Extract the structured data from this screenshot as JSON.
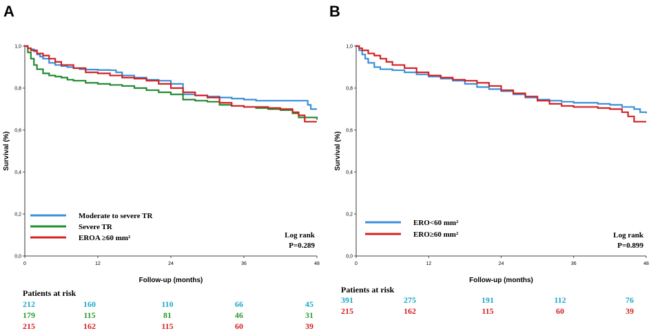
{
  "chart_data": [
    {
      "panel": "A",
      "type": "line",
      "xlabel": "Follow-up (months)",
      "ylabel": "Survival (%)",
      "xlim": [
        0,
        48
      ],
      "ylim": [
        0,
        1
      ],
      "xticks": [
        "0",
        "12",
        "24",
        "36",
        "48"
      ],
      "yticks": [
        "0,0",
        "0,2",
        "0,4",
        "0,6",
        "0,8",
        "1,0"
      ],
      "annotation": [
        "Log rank",
        "P=0.289"
      ],
      "series": [
        {
          "name": "Moderate to severe TR",
          "color": "#3a8fd8",
          "points": [
            [
              0,
              1.0
            ],
            [
              0.5,
              0.99
            ],
            [
              1,
              0.985
            ],
            [
              1.5,
              0.975
            ],
            [
              2,
              0.96
            ],
            [
              2.5,
              0.95
            ],
            [
              3,
              0.94
            ],
            [
              4,
              0.92
            ],
            [
              5,
              0.91
            ],
            [
              6,
              0.905
            ],
            [
              7,
              0.9
            ],
            [
              8,
              0.895
            ],
            [
              9,
              0.89
            ],
            [
              10,
              0.888
            ],
            [
              12,
              0.886
            ],
            [
              14,
              0.885
            ],
            [
              15,
              0.875
            ],
            [
              16,
              0.86
            ],
            [
              18,
              0.85
            ],
            [
              20,
              0.84
            ],
            [
              22,
              0.835
            ],
            [
              24,
              0.82
            ],
            [
              26,
              0.77
            ],
            [
              28,
              0.765
            ],
            [
              30,
              0.76
            ],
            [
              32,
              0.755
            ],
            [
              34,
              0.75
            ],
            [
              36,
              0.745
            ],
            [
              38,
              0.74
            ],
            [
              40,
              0.74
            ],
            [
              42,
              0.74
            ],
            [
              45,
              0.74
            ],
            [
              46,
              0.74
            ],
            [
              46.5,
              0.72
            ],
            [
              47,
              0.7
            ],
            [
              48,
              0.7
            ]
          ]
        },
        {
          "name": "Severe TR",
          "color": "#1e8b2e",
          "points": [
            [
              0,
              1.0
            ],
            [
              0.5,
              0.97
            ],
            [
              1,
              0.94
            ],
            [
              1.5,
              0.91
            ],
            [
              2,
              0.89
            ],
            [
              3,
              0.87
            ],
            [
              4,
              0.86
            ],
            [
              5,
              0.855
            ],
            [
              6,
              0.85
            ],
            [
              7,
              0.84
            ],
            [
              8,
              0.835
            ],
            [
              10,
              0.825
            ],
            [
              12,
              0.82
            ],
            [
              14,
              0.815
            ],
            [
              16,
              0.81
            ],
            [
              18,
              0.8
            ],
            [
              20,
              0.79
            ],
            [
              22,
              0.78
            ],
            [
              24,
              0.77
            ],
            [
              26,
              0.745
            ],
            [
              28,
              0.74
            ],
            [
              30,
              0.735
            ],
            [
              32,
              0.72
            ],
            [
              34,
              0.715
            ],
            [
              36,
              0.71
            ],
            [
              38,
              0.705
            ],
            [
              40,
              0.7
            ],
            [
              42,
              0.695
            ],
            [
              44,
              0.68
            ],
            [
              45,
              0.66
            ],
            [
              48,
              0.65
            ]
          ]
        },
        {
          "name": "EROA ≥60 mm²",
          "color": "#d42020",
          "points": [
            [
              0,
              1.0
            ],
            [
              0.5,
              0.99
            ],
            [
              1,
              0.98
            ],
            [
              2,
              0.965
            ],
            [
              3,
              0.955
            ],
            [
              4,
              0.94
            ],
            [
              5,
              0.925
            ],
            [
              6,
              0.91
            ],
            [
              8,
              0.895
            ],
            [
              10,
              0.875
            ],
            [
              12,
              0.87
            ],
            [
              14,
              0.86
            ],
            [
              16,
              0.85
            ],
            [
              18,
              0.845
            ],
            [
              20,
              0.835
            ],
            [
              22,
              0.82
            ],
            [
              24,
              0.8
            ],
            [
              26,
              0.78
            ],
            [
              28,
              0.765
            ],
            [
              30,
              0.755
            ],
            [
              32,
              0.73
            ],
            [
              34,
              0.715
            ],
            [
              36,
              0.71
            ],
            [
              38,
              0.71
            ],
            [
              40,
              0.705
            ],
            [
              42,
              0.7
            ],
            [
              44,
              0.685
            ],
            [
              45,
              0.67
            ],
            [
              46,
              0.64
            ],
            [
              48,
              0.64
            ]
          ]
        }
      ],
      "risk_table": {
        "title": "Patients at risk",
        "rows": [
          {
            "color": "#1aa8c8",
            "values": [
              "212",
              "160",
              "110",
              "66",
              "45"
            ]
          },
          {
            "color": "#2a9a2a",
            "values": [
              "179",
              "115",
              "81",
              "46",
              "31"
            ]
          },
          {
            "color": "#d42020",
            "values": [
              "215",
              "162",
              "115",
              "60",
              "39"
            ]
          }
        ]
      }
    },
    {
      "panel": "B",
      "type": "line",
      "xlabel": "Follow-up (months)",
      "ylabel": "Survival (%)",
      "xlim": [
        0,
        48
      ],
      "ylim": [
        0,
        1
      ],
      "xticks": [
        "0",
        "12",
        "24",
        "36",
        "48"
      ],
      "yticks": [
        "0,0",
        "0,2",
        "0,4",
        "0,6",
        "0,8",
        "1,0"
      ],
      "annotation": [
        "Log rank",
        "P=0.899"
      ],
      "series": [
        {
          "name": "ERO<60 mm²",
          "color": "#3a8fd8",
          "points": [
            [
              0,
              1.0
            ],
            [
              0.5,
              0.98
            ],
            [
              1,
              0.96
            ],
            [
              1.5,
              0.94
            ],
            [
              2,
              0.92
            ],
            [
              3,
              0.9
            ],
            [
              4,
              0.89
            ],
            [
              6,
              0.885
            ],
            [
              8,
              0.875
            ],
            [
              10,
              0.865
            ],
            [
              12,
              0.855
            ],
            [
              14,
              0.845
            ],
            [
              16,
              0.835
            ],
            [
              18,
              0.82
            ],
            [
              20,
              0.805
            ],
            [
              22,
              0.795
            ],
            [
              24,
              0.785
            ],
            [
              26,
              0.77
            ],
            [
              28,
              0.755
            ],
            [
              30,
              0.745
            ],
            [
              32,
              0.74
            ],
            [
              34,
              0.735
            ],
            [
              36,
              0.73
            ],
            [
              38,
              0.73
            ],
            [
              40,
              0.725
            ],
            [
              42,
              0.72
            ],
            [
              44,
              0.71
            ],
            [
              46,
              0.7
            ],
            [
              47,
              0.685
            ],
            [
              48,
              0.68
            ]
          ]
        },
        {
          "name": "ERO≥60 mm²",
          "color": "#d42020",
          "points": [
            [
              0,
              1.0
            ],
            [
              0.5,
              0.99
            ],
            [
              1,
              0.98
            ],
            [
              2,
              0.965
            ],
            [
              3,
              0.955
            ],
            [
              4,
              0.94
            ],
            [
              5,
              0.925
            ],
            [
              6,
              0.91
            ],
            [
              8,
              0.895
            ],
            [
              10,
              0.875
            ],
            [
              12,
              0.86
            ],
            [
              14,
              0.85
            ],
            [
              16,
              0.84
            ],
            [
              18,
              0.835
            ],
            [
              20,
              0.825
            ],
            [
              22,
              0.81
            ],
            [
              24,
              0.79
            ],
            [
              26,
              0.775
            ],
            [
              28,
              0.76
            ],
            [
              30,
              0.74
            ],
            [
              32,
              0.725
            ],
            [
              34,
              0.715
            ],
            [
              36,
              0.71
            ],
            [
              38,
              0.71
            ],
            [
              40,
              0.705
            ],
            [
              42,
              0.7
            ],
            [
              44,
              0.685
            ],
            [
              45,
              0.665
            ],
            [
              46,
              0.64
            ],
            [
              48,
              0.64
            ]
          ]
        }
      ],
      "risk_table": {
        "title": "Patients at risk",
        "rows": [
          {
            "color": "#1aa8c8",
            "values": [
              "391",
              "275",
              "191",
              "112",
              "76"
            ]
          },
          {
            "color": "#d42020",
            "values": [
              "215",
              "162",
              "115",
              "60",
              "39"
            ]
          }
        ]
      }
    }
  ]
}
